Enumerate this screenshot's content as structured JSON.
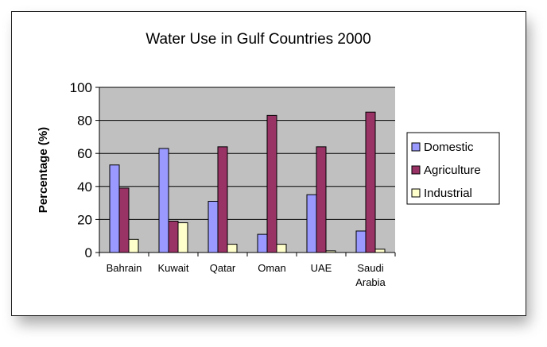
{
  "chart_data": {
    "type": "bar",
    "title": "Water Use in Gulf Countries 2000",
    "xlabel": "",
    "ylabel": "Percentage (%)",
    "ylim": [
      0,
      100
    ],
    "yticks": [
      "0",
      "20",
      "40",
      "60",
      "80",
      "100"
    ],
    "grid": true,
    "legend": "right",
    "categories": [
      "Bahrain",
      "Kuwait",
      "Qatar",
      "Oman",
      "UAE",
      "Saudi Arabia"
    ],
    "series": [
      {
        "name": "Domestic",
        "color": "#9999ff",
        "values": [
          53,
          63,
          31,
          11,
          35,
          13
        ]
      },
      {
        "name": "Agriculture",
        "color": "#993366",
        "values": [
          39,
          19,
          64,
          83,
          64,
          85
        ]
      },
      {
        "name": "Industrial",
        "color": "#ffffcc",
        "values": [
          8,
          18,
          5,
          5,
          1,
          2
        ]
      }
    ],
    "plot_background": "#c0c0c0"
  }
}
